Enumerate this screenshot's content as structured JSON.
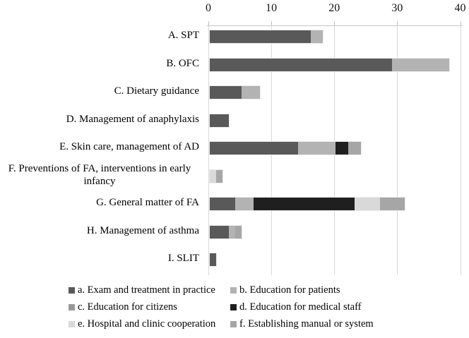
{
  "chart_data": {
    "type": "bar",
    "orientation": "horizontal",
    "stacked": true,
    "title": "",
    "xlabel": "",
    "ylabel": "",
    "x_axis": {
      "min": 0,
      "max": 40,
      "tick_interval": 10,
      "ticks": [
        0,
        10,
        20,
        30,
        40
      ]
    },
    "grid": true,
    "gridline_color": "#d9d9d9",
    "legend_position": "bottom",
    "categories": [
      "A. SPT",
      "B. OFC",
      "C. Dietary guidance",
      "D. Management of anaphylaxis",
      "E. Skin care, management of AD",
      "F. Preventions of FA, interventions in early infancy",
      "G. General matter of FA",
      "H. Management of asthma",
      "I. SLIT"
    ],
    "series": [
      {
        "name": "a. Exam and treatment in practice",
        "color": "#595959",
        "values": [
          16,
          29,
          5,
          3,
          14,
          0,
          4,
          3,
          1
        ]
      },
      {
        "name": "b. Education for patients",
        "color": "#b3b3b3",
        "values": [
          2,
          9,
          3,
          0,
          6,
          0,
          3,
          1,
          0
        ]
      },
      {
        "name": "c. Education for citizens",
        "color": "#999999",
        "values": [
          0,
          0,
          0,
          0,
          0,
          0,
          0,
          0,
          0
        ]
      },
      {
        "name": "d. Education for medical staff",
        "color": "#1f1f1f",
        "values": [
          0,
          0,
          0,
          0,
          2,
          0,
          16,
          0,
          0
        ]
      },
      {
        "name": "e. Hospital and clinic cooperation",
        "color": "#d9d9d9",
        "values": [
          0,
          0,
          0,
          0,
          0,
          1,
          4,
          0,
          0
        ]
      },
      {
        "name": "f. Establishing manual or system",
        "color": "#a6a6a6",
        "values": [
          0,
          0,
          0,
          0,
          2,
          1,
          4,
          1,
          0
        ]
      }
    ],
    "category_totals": [
      18,
      38,
      8,
      3,
      24,
      2,
      31,
      5,
      1
    ]
  }
}
